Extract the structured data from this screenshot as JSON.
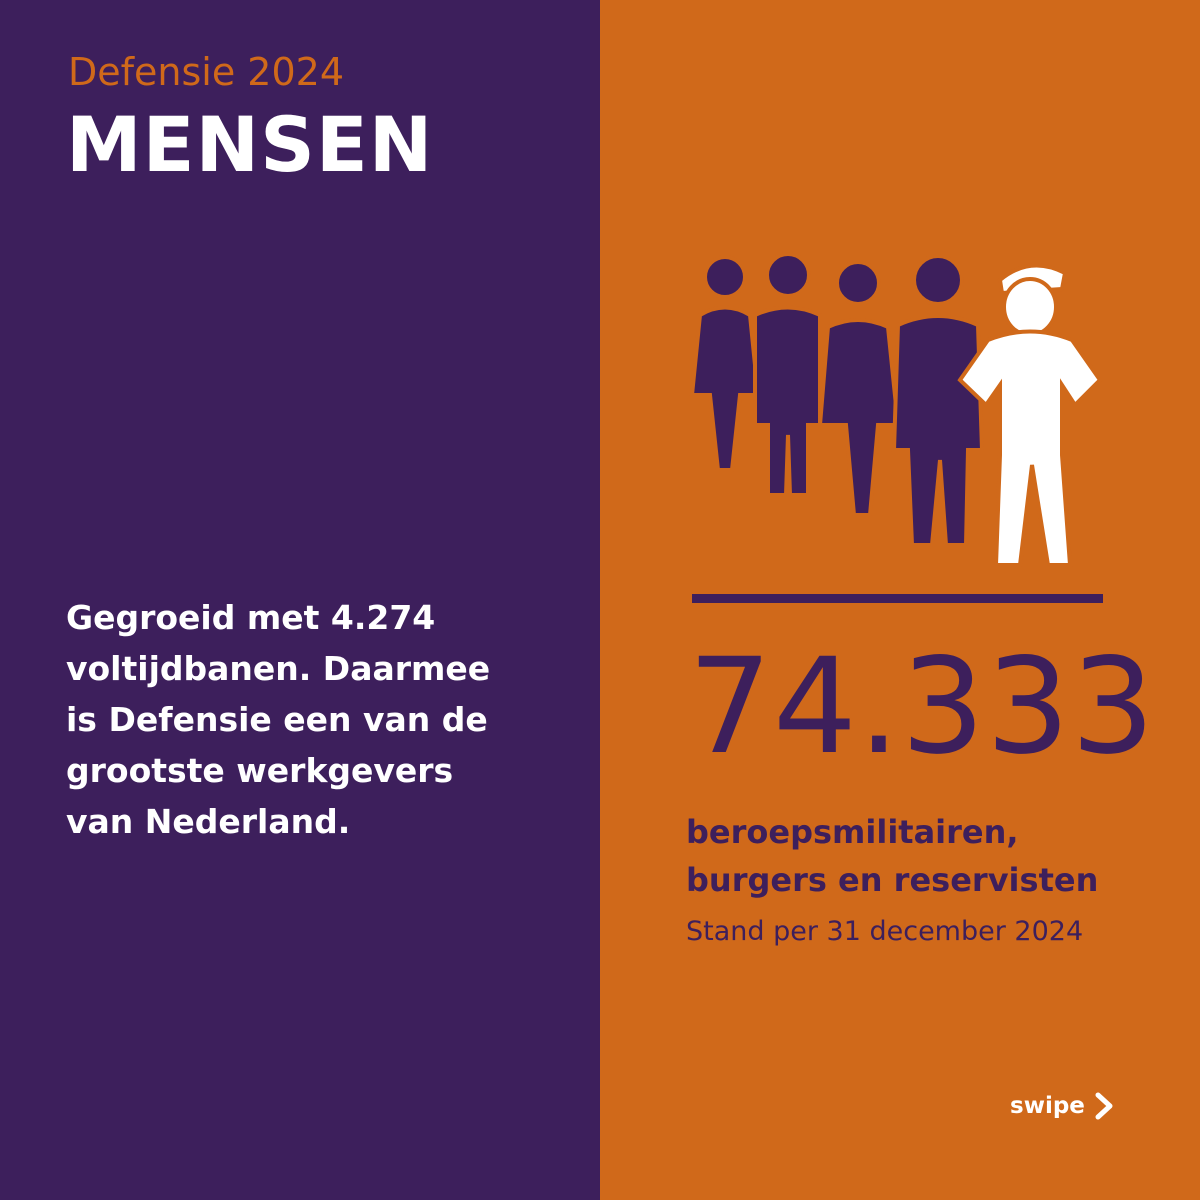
{
  "header": {
    "kicker": "Defensie 2024",
    "title": "MENSEN"
  },
  "left": {
    "text": "Gegroeid met 4.274 voltijdbanen. Daarmee is Defensie een van de grootste werkgevers van Nederland."
  },
  "right": {
    "illustration_icon": "group-of-people-with-soldier-icon",
    "number": "74.333",
    "subtitle": "beroepsmilitairen, burgers en reservisten",
    "note": "Stand per 31 december 2024"
  },
  "nav": {
    "swipe_label": "swipe",
    "swipe_icon": "chevron-right-icon"
  },
  "colors": {
    "purple": "#3d1f5c",
    "orange": "#d0691a",
    "white": "#ffffff"
  }
}
